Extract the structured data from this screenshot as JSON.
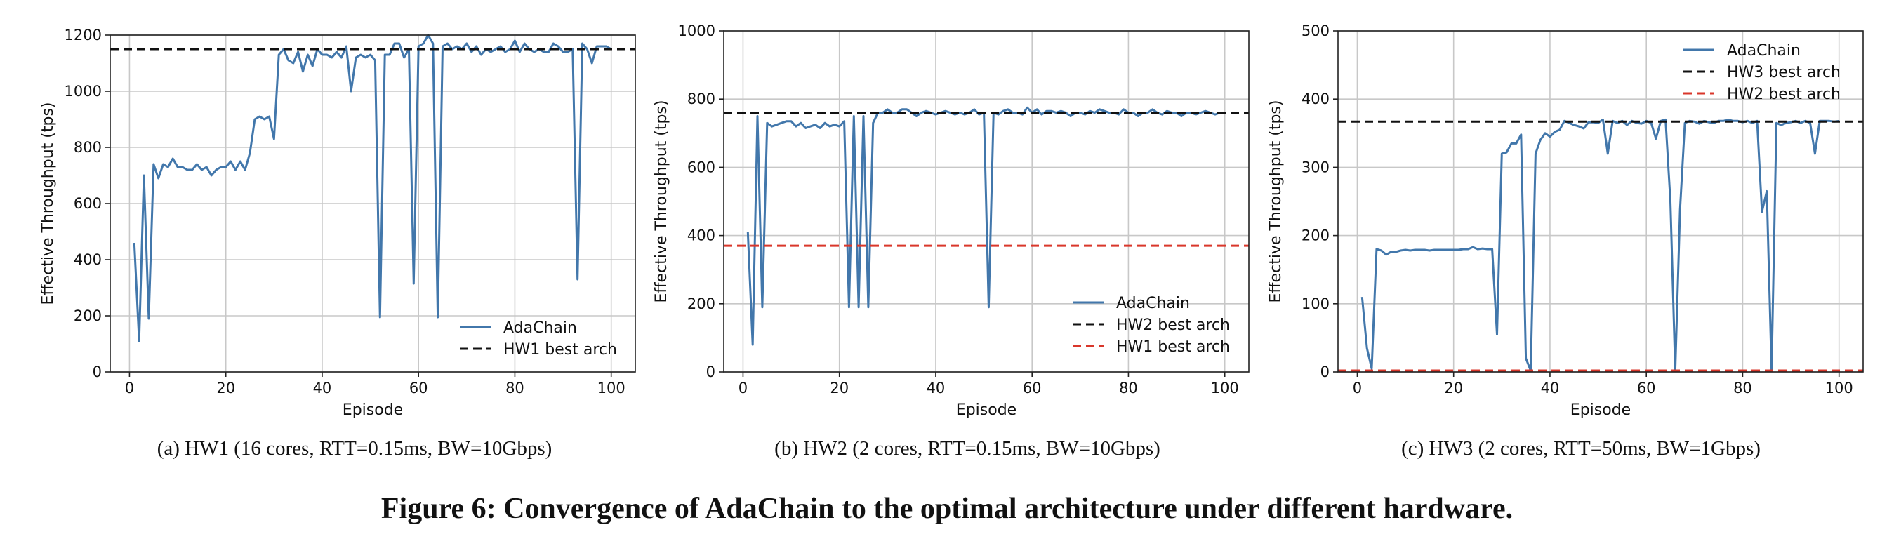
{
  "figure_caption": "Figure 6: Convergence of AdaChain to the optimal architecture under different hardware.",
  "chart_data": [
    {
      "type": "line",
      "caption": "(a) HW1 (16 cores, RTT=0.15ms, BW=10Gbps)",
      "xlabel": "Episode",
      "ylabel": "Effective Throughput (tps)",
      "xlim": [
        -4,
        105
      ],
      "ylim": [
        0,
        1200
      ],
      "xticks": [
        0,
        20,
        40,
        60,
        80,
        100
      ],
      "yticks": [
        0,
        200,
        400,
        600,
        800,
        1000,
        1200
      ],
      "grid": true,
      "legend_position": "lower-right",
      "series": [
        {
          "name": "AdaChain",
          "color": "#4277ab",
          "style": "solid",
          "x": [
            1,
            2,
            3,
            4,
            5,
            6,
            7,
            8,
            9,
            10,
            11,
            12,
            13,
            14,
            15,
            16,
            17,
            18,
            19,
            20,
            21,
            22,
            23,
            24,
            25,
            26,
            27,
            28,
            29,
            30,
            31,
            32,
            33,
            34,
            35,
            36,
            37,
            38,
            39,
            40,
            41,
            42,
            43,
            44,
            45,
            46,
            47,
            48,
            49,
            50,
            51,
            52,
            53,
            54,
            55,
            56,
            57,
            58,
            59,
            60,
            61,
            62,
            63,
            64,
            65,
            66,
            67,
            68,
            69,
            70,
            71,
            72,
            73,
            74,
            75,
            76,
            77,
            78,
            79,
            80,
            81,
            82,
            83,
            84,
            85,
            86,
            87,
            88,
            89,
            90,
            91,
            92,
            93,
            94,
            95,
            96,
            97,
            98,
            99,
            100
          ],
          "y": [
            460,
            110,
            700,
            190,
            740,
            690,
            740,
            730,
            760,
            730,
            730,
            720,
            720,
            740,
            720,
            730,
            700,
            720,
            730,
            730,
            750,
            720,
            750,
            720,
            780,
            900,
            910,
            900,
            910,
            830,
            1130,
            1150,
            1110,
            1100,
            1140,
            1070,
            1130,
            1090,
            1150,
            1130,
            1130,
            1120,
            1140,
            1120,
            1160,
            1000,
            1120,
            1130,
            1120,
            1130,
            1110,
            195,
            1130,
            1130,
            1170,
            1170,
            1120,
            1150,
            315,
            1160,
            1170,
            1200,
            1170,
            195,
            1160,
            1170,
            1150,
            1160,
            1150,
            1170,
            1140,
            1160,
            1130,
            1150,
            1140,
            1150,
            1160,
            1140,
            1150,
            1180,
            1140,
            1170,
            1150,
            1140,
            1150,
            1140,
            1140,
            1170,
            1160,
            1140,
            1140,
            1150,
            330,
            1170,
            1150,
            1100,
            1160,
            1160,
            1160,
            1150
          ]
        },
        {
          "name": "HW1 best arch",
          "color": "#111111",
          "style": "dashed",
          "y_const": 1150
        }
      ]
    },
    {
      "type": "line",
      "caption": "(b) HW2 (2 cores, RTT=0.15ms, BW=10Gbps)",
      "xlabel": "Episode",
      "ylabel": "Effective Throughput (tps)",
      "xlim": [
        -4,
        105
      ],
      "ylim": [
        0,
        1000
      ],
      "xticks": [
        0,
        20,
        40,
        60,
        80,
        100
      ],
      "yticks": [
        0,
        200,
        400,
        600,
        800,
        1000
      ],
      "grid": true,
      "legend_position": "lower-right",
      "series": [
        {
          "name": "AdaChain",
          "color": "#4277ab",
          "style": "solid",
          "x": [
            1,
            2,
            3,
            4,
            5,
            6,
            7,
            8,
            9,
            10,
            11,
            12,
            13,
            14,
            15,
            16,
            17,
            18,
            19,
            20,
            21,
            22,
            23,
            24,
            25,
            26,
            27,
            28,
            29,
            30,
            31,
            32,
            33,
            34,
            35,
            36,
            37,
            38,
            39,
            40,
            41,
            42,
            43,
            44,
            45,
            46,
            47,
            48,
            49,
            50,
            51,
            52,
            53,
            54,
            55,
            56,
            57,
            58,
            59,
            60,
            61,
            62,
            63,
            64,
            65,
            66,
            67,
            68,
            69,
            70,
            71,
            72,
            73,
            74,
            75,
            76,
            77,
            78,
            79,
            80,
            81,
            82,
            83,
            84,
            85,
            86,
            87,
            88,
            89,
            90,
            91,
            92,
            93,
            94,
            95,
            96,
            97,
            98,
            99,
            100
          ],
          "y": [
            410,
            80,
            750,
            190,
            730,
            720,
            725,
            730,
            735,
            735,
            720,
            730,
            715,
            720,
            725,
            715,
            730,
            720,
            725,
            720,
            735,
            190,
            750,
            190,
            750,
            190,
            730,
            760,
            760,
            770,
            760,
            760,
            770,
            770,
            760,
            750,
            760,
            765,
            760,
            755,
            760,
            765,
            760,
            755,
            760,
            755,
            760,
            770,
            755,
            760,
            190,
            760,
            755,
            765,
            770,
            760,
            760,
            755,
            775,
            760,
            770,
            755,
            765,
            765,
            760,
            765,
            760,
            750,
            760,
            760,
            755,
            765,
            760,
            770,
            765,
            760,
            760,
            755,
            770,
            760,
            760,
            750,
            760,
            760,
            770,
            760,
            755,
            765,
            760,
            760,
            750,
            760,
            760,
            755,
            760,
            765,
            760,
            755,
            760,
            760
          ]
        },
        {
          "name": "HW2 best arch",
          "color": "#111111",
          "style": "dashed",
          "y_const": 760
        },
        {
          "name": "HW1 best arch",
          "color": "#d9372b",
          "style": "dashed",
          "y_const": 370
        }
      ]
    },
    {
      "type": "line",
      "caption": "(c) HW3 (2 cores, RTT=50ms, BW=1Gbps)",
      "xlabel": "Episode",
      "ylabel": "Effective Throughput (tps)",
      "xlim": [
        -4,
        105
      ],
      "ylim": [
        0,
        500
      ],
      "xticks": [
        0,
        20,
        40,
        60,
        80,
        100
      ],
      "yticks": [
        0,
        100,
        200,
        300,
        400,
        500
      ],
      "grid": true,
      "legend_position": "upper-right",
      "series": [
        {
          "name": "AdaChain",
          "color": "#4277ab",
          "style": "solid",
          "x": [
            1,
            2,
            3,
            4,
            5,
            6,
            7,
            8,
            9,
            10,
            11,
            12,
            13,
            14,
            15,
            16,
            17,
            18,
            19,
            20,
            21,
            22,
            23,
            24,
            25,
            26,
            27,
            28,
            29,
            30,
            31,
            32,
            33,
            34,
            35,
            36,
            37,
            38,
            39,
            40,
            41,
            42,
            43,
            44,
            45,
            46,
            47,
            48,
            49,
            50,
            51,
            52,
            53,
            54,
            55,
            56,
            57,
            58,
            59,
            60,
            61,
            62,
            63,
            64,
            65,
            66,
            67,
            68,
            69,
            70,
            71,
            72,
            73,
            74,
            75,
            76,
            77,
            78,
            79,
            80,
            81,
            82,
            83,
            84,
            85,
            86,
            87,
            88,
            89,
            90,
            91,
            92,
            93,
            94,
            95,
            96,
            97,
            98,
            99,
            100
          ],
          "y": [
            110,
            35,
            5,
            180,
            178,
            172,
            176,
            176,
            178,
            179,
            178,
            179,
            179,
            179,
            178,
            179,
            179,
            179,
            179,
            179,
            179,
            180,
            180,
            183,
            180,
            181,
            180,
            180,
            55,
            320,
            322,
            335,
            335,
            348,
            20,
            2,
            320,
            340,
            350,
            345,
            352,
            355,
            368,
            365,
            362,
            360,
            357,
            366,
            366,
            365,
            370,
            320,
            368,
            365,
            368,
            362,
            368,
            365,
            364,
            368,
            365,
            342,
            368,
            370,
            250,
            2,
            238,
            365,
            368,
            367,
            364,
            368,
            366,
            365,
            368,
            368,
            370,
            368,
            368,
            366,
            368,
            365,
            368,
            235,
            265,
            2,
            365,
            362,
            365,
            366,
            368,
            365,
            368,
            365,
            320,
            368,
            368,
            368,
            367,
            368
          ]
        },
        {
          "name": "HW3 best arch",
          "color": "#111111",
          "style": "dashed",
          "y_const": 367
        },
        {
          "name": "HW2 best arch",
          "color": "#d9372b",
          "style": "dashed",
          "y_const": 2
        }
      ]
    }
  ]
}
